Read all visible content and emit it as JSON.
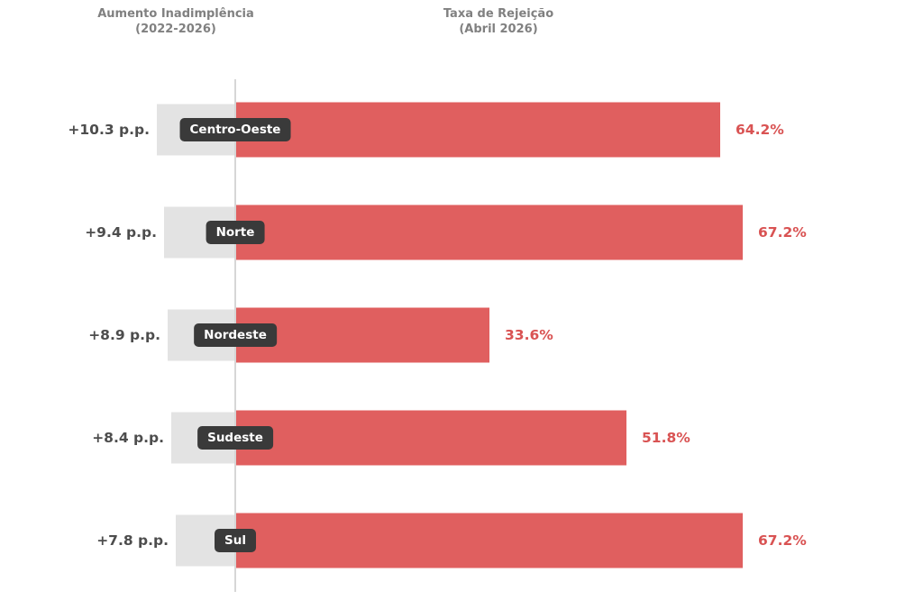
{
  "titles": {
    "left_title": "Aumento Inadimplência",
    "left_subtitle": "(2022-2026)",
    "right_title": "Taxa de Rejeição",
    "right_subtitle": "(Abril 2026)"
  },
  "colors": {
    "bar_red": "#e05f5f",
    "bar_gray": "#e3e3e3",
    "pill_background": "#3a3a3a",
    "pill_text": "#ffffff",
    "right_value_text": "#d95353",
    "left_value_text": "#4d4d4d",
    "header_text": "#808080",
    "axis_line": "#d6d6d6",
    "background": "#ffffff"
  },
  "chart_data": {
    "type": "bar",
    "orientation": "horizontal-diverging",
    "title": "",
    "column_headers": {
      "left": "Aumento Inadimplência (2022-2026)",
      "right": "Taxa de Rejeição (Abril 2026)"
    },
    "categories": [
      "Centro-Oeste",
      "Norte",
      "Nordeste",
      "Sudeste",
      "Sul"
    ],
    "series": [
      {
        "name": "Aumento Inadimplência (2022-2026)",
        "side": "left",
        "unit": "p.p.",
        "values": [
          10.3,
          9.4,
          8.9,
          8.4,
          7.8
        ]
      },
      {
        "name": "Taxa de Rejeição (Abril 2026)",
        "side": "right",
        "unit": "%",
        "values": [
          64.2,
          67.2,
          33.6,
          51.8,
          67.2
        ]
      }
    ],
    "rows": [
      {
        "category": "Centro-Oeste",
        "left_label": "+10.3 p.p.",
        "left_value": 10.3,
        "right_label": "64.2%",
        "right_value": 64.2
      },
      {
        "category": "Norte",
        "left_label": "+9.4 p.p.",
        "left_value": 9.4,
        "right_label": "67.2%",
        "right_value": 67.2
      },
      {
        "category": "Nordeste",
        "left_label": "+8.9 p.p.",
        "left_value": 8.9,
        "right_label": "33.6%",
        "right_value": 33.6
      },
      {
        "category": "Sudeste",
        "left_label": "+8.4 p.p.",
        "left_value": 8.4,
        "right_label": "51.8%",
        "right_value": 51.8
      },
      {
        "category": "Sul",
        "left_label": "+7.8 p.p.",
        "left_value": 7.8,
        "right_label": "67.2%",
        "right_value": 67.2
      }
    ],
    "axis": {
      "zero_line_x": true,
      "grid": false,
      "ticks": "none",
      "frame": "none"
    }
  }
}
